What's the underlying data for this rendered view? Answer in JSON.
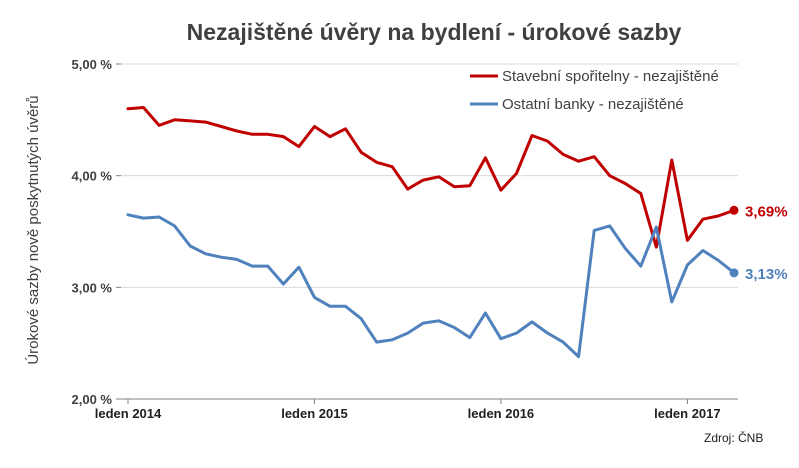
{
  "chart_data": {
    "type": "line",
    "title": "Nezajištěné úvěry na bydlení - úrokové sazby",
    "ylabel": "Úrokové sazby nově poskytnutých úvěrů",
    "xlabel": "",
    "ylim": [
      2.0,
      5.0
    ],
    "y_ticks": [
      {
        "value": 2.0,
        "label": "2,00 %"
      },
      {
        "value": 3.0,
        "label": "3,00 %"
      },
      {
        "value": 4.0,
        "label": "4,00 %"
      },
      {
        "value": 5.0,
        "label": "5,00 %"
      }
    ],
    "x_ticks": [
      {
        "index": 0,
        "label": "leden 2014"
      },
      {
        "index": 12,
        "label": "leden 2015"
      },
      {
        "index": 24,
        "label": "leden 2016"
      },
      {
        "index": 36,
        "label": "leden 2017"
      }
    ],
    "n_points": 40,
    "grid": "horizontal",
    "legend_position": "top-right",
    "series": [
      {
        "name": "Stavební spořitelny - nezajištěné",
        "color": "#c00000",
        "end_label": "3,69%",
        "values": [
          4.6,
          4.61,
          4.45,
          4.5,
          4.49,
          4.48,
          4.44,
          4.4,
          4.37,
          4.37,
          4.35,
          4.26,
          4.44,
          4.35,
          4.42,
          4.21,
          4.12,
          4.08,
          3.88,
          3.96,
          3.99,
          3.9,
          3.91,
          4.16,
          3.87,
          4.02,
          4.36,
          4.31,
          4.19,
          4.13,
          4.17,
          4.0,
          3.93,
          3.84,
          3.36,
          4.14,
          3.42,
          3.61,
          3.64,
          3.69
        ]
      },
      {
        "name": "Ostatní banky - nezajištěné",
        "color": "#4f81bd",
        "end_label": "3,13%",
        "values": [
          3.65,
          3.62,
          3.63,
          3.55,
          3.37,
          3.3,
          3.27,
          3.25,
          3.19,
          3.19,
          3.03,
          3.18,
          2.91,
          2.83,
          2.83,
          2.72,
          2.51,
          2.53,
          2.59,
          2.68,
          2.7,
          2.64,
          2.55,
          2.77,
          2.54,
          2.59,
          2.69,
          2.59,
          2.51,
          2.38,
          3.51,
          3.55,
          3.35,
          3.19,
          3.54,
          2.87,
          3.2,
          3.33,
          3.24,
          3.13
        ]
      }
    ]
  },
  "source": "Zdroj: ČNB"
}
